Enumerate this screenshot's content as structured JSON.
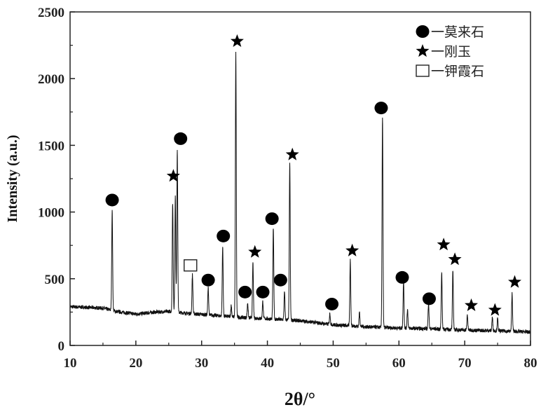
{
  "chart_data": {
    "type": "line",
    "title": "",
    "xlabel": "2θ/°",
    "ylabel": "Intensity (a.u.)",
    "xlim": [
      10,
      80
    ],
    "ylim": [
      0,
      2500
    ],
    "xticks": [
      10,
      20,
      30,
      40,
      50,
      60,
      70,
      80
    ],
    "yticks": [
      0,
      500,
      1000,
      1500,
      2000,
      2500
    ],
    "grid": false,
    "legend_position": "top-right",
    "line_color": "#111111",
    "legend": [
      {
        "marker": "circle",
        "label": "一莫来石"
      },
      {
        "marker": "star",
        "label": "一刚玉"
      },
      {
        "marker": "square-open",
        "label": "一钾霞石"
      }
    ],
    "background": [
      [
        10,
        290
      ],
      [
        15,
        280
      ],
      [
        17,
        255
      ],
      [
        20,
        235
      ],
      [
        23,
        250
      ],
      [
        25,
        255
      ],
      [
        28,
        240
      ],
      [
        32,
        225
      ],
      [
        36,
        210
      ],
      [
        40,
        200
      ],
      [
        45,
        185
      ],
      [
        50,
        155
      ],
      [
        55,
        140
      ],
      [
        60,
        130
      ],
      [
        65,
        125
      ],
      [
        70,
        115
      ],
      [
        75,
        110
      ],
      [
        80,
        100
      ]
    ],
    "peaks": [
      {
        "x": 16.4,
        "y": 1010
      },
      {
        "x": 25.6,
        "y": 1070
      },
      {
        "x": 26.0,
        "y": 1120
      },
      {
        "x": 26.3,
        "y": 1470
      },
      {
        "x": 28.6,
        "y": 530
      },
      {
        "x": 31.0,
        "y": 430
      },
      {
        "x": 33.2,
        "y": 740
      },
      {
        "x": 34.5,
        "y": 300
      },
      {
        "x": 35.2,
        "y": 2190
      },
      {
        "x": 37.0,
        "y": 320
      },
      {
        "x": 37.8,
        "y": 620
      },
      {
        "x": 39.3,
        "y": 330
      },
      {
        "x": 40.9,
        "y": 880
      },
      {
        "x": 42.6,
        "y": 400
      },
      {
        "x": 43.4,
        "y": 1370
      },
      {
        "x": 49.5,
        "y": 240
      },
      {
        "x": 52.6,
        "y": 640
      },
      {
        "x": 54.0,
        "y": 250
      },
      {
        "x": 57.5,
        "y": 1710
      },
      {
        "x": 60.7,
        "y": 480
      },
      {
        "x": 61.3,
        "y": 270
      },
      {
        "x": 64.5,
        "y": 320
      },
      {
        "x": 66.5,
        "y": 550
      },
      {
        "x": 68.2,
        "y": 560
      },
      {
        "x": 70.4,
        "y": 230
      },
      {
        "x": 74.2,
        "y": 210
      },
      {
        "x": 75.0,
        "y": 200
      },
      {
        "x": 77.2,
        "y": 390
      }
    ],
    "phase_markers": [
      {
        "marker": "circle",
        "x": 16.4,
        "y": 1090
      },
      {
        "marker": "star",
        "x": 25.7,
        "y": 1270
      },
      {
        "marker": "circle",
        "x": 26.8,
        "y": 1550
      },
      {
        "marker": "square-open",
        "x": 28.3,
        "y": 600
      },
      {
        "marker": "circle",
        "x": 31.0,
        "y": 490
      },
      {
        "marker": "circle",
        "x": 33.3,
        "y": 820
      },
      {
        "marker": "star",
        "x": 35.4,
        "y": 2280
      },
      {
        "marker": "circle",
        "x": 36.6,
        "y": 400
      },
      {
        "marker": "star",
        "x": 38.1,
        "y": 700
      },
      {
        "marker": "circle",
        "x": 39.3,
        "y": 400
      },
      {
        "marker": "circle",
        "x": 40.7,
        "y": 950
      },
      {
        "marker": "circle",
        "x": 42.0,
        "y": 490
      },
      {
        "marker": "star",
        "x": 43.8,
        "y": 1430
      },
      {
        "marker": "circle",
        "x": 49.8,
        "y": 310
      },
      {
        "marker": "star",
        "x": 52.9,
        "y": 710
      },
      {
        "marker": "circle",
        "x": 57.3,
        "y": 1780
      },
      {
        "marker": "circle",
        "x": 60.5,
        "y": 510
      },
      {
        "marker": "circle",
        "x": 64.6,
        "y": 350
      },
      {
        "marker": "star",
        "x": 66.8,
        "y": 755
      },
      {
        "marker": "star",
        "x": 68.5,
        "y": 645
      },
      {
        "marker": "star",
        "x": 71.0,
        "y": 300
      },
      {
        "marker": "star",
        "x": 74.6,
        "y": 265
      },
      {
        "marker": "star",
        "x": 77.6,
        "y": 475
      }
    ]
  }
}
